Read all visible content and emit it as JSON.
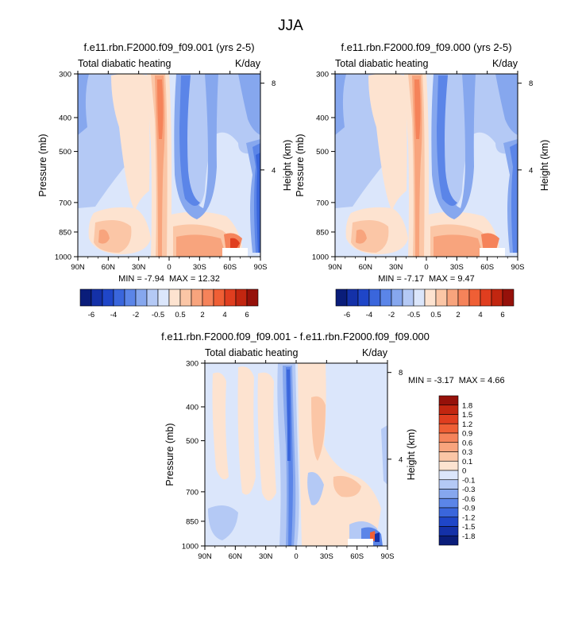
{
  "figure": {
    "title": "JJA"
  },
  "colors": {
    "bluescale": [
      "#0a1d7a",
      "#1431a8",
      "#1f46c8",
      "#3a66dc",
      "#5b85e8",
      "#86a7ee",
      "#b4c9f5",
      "#dbe6fb"
    ],
    "redscale": [
      "#fde3d0",
      "#fbc6a6",
      "#f8a47d",
      "#f5835a",
      "#ef5f35",
      "#e03e1f",
      "#c22610",
      "#96110a"
    ],
    "diffscale": [
      "#0a1d7a",
      "#1431a8",
      "#1f46c8",
      "#3a66dc",
      "#5b85e8",
      "#86a7ee",
      "#b4c9f5",
      "#dbe6fb",
      "#fde3d0",
      "#fbc6a6",
      "#f8a47d",
      "#f5835a",
      "#ef5f35",
      "#e03e1f",
      "#c22610",
      "#96110a"
    ]
  },
  "chart_data": [
    {
      "type": "heatmap",
      "title": "f.e11.rbn.F2000.f09_f09.001 (yrs 2-5)",
      "left_string": "Total diabatic heating",
      "right_string": "K/day",
      "ylabel": "Pressure (mb)",
      "y2label": "Height (km)",
      "x_ticks": [
        "90N",
        "60N",
        "30N",
        "0",
        "30S",
        "60S",
        "90S"
      ],
      "x_values": [
        90,
        60,
        30,
        0,
        -30,
        -60,
        -90
      ],
      "y_ticks": [
        "300",
        "400",
        "500",
        "700",
        "850",
        "1000"
      ],
      "y_values": [
        300,
        400,
        500,
        700,
        850,
        1000
      ],
      "y2_ticks": [
        "8",
        "4"
      ],
      "y2_values": [
        8,
        4
      ],
      "min_label": "MIN = ",
      "min": "-7.94",
      "max_label": "MAX = ",
      "max": "12.32",
      "colorbar_labels": [
        "-6",
        "-4",
        "-2",
        "-0.5",
        "0.5",
        "2",
        "4",
        "6"
      ],
      "colorbar_levels": [
        -6,
        -5,
        -4,
        -3,
        -2,
        -1,
        -0.5,
        0,
        0.5,
        1,
        2,
        3,
        4,
        5,
        6
      ]
    },
    {
      "type": "heatmap",
      "title": "f.e11.rbn.F2000.f09_f09.000 (yrs 2-5)",
      "left_string": "Total diabatic heating",
      "right_string": "K/day",
      "ylabel": "Pressure (mb)",
      "y2label": "Height (km)",
      "x_ticks": [
        "90N",
        "60N",
        "30N",
        "0",
        "30S",
        "60S",
        "90S"
      ],
      "x_values": [
        90,
        60,
        30,
        0,
        -30,
        -60,
        -90
      ],
      "y_ticks": [
        "300",
        "400",
        "500",
        "700",
        "850",
        "1000"
      ],
      "y_values": [
        300,
        400,
        500,
        700,
        850,
        1000
      ],
      "y2_ticks": [
        "8",
        "4"
      ],
      "y2_values": [
        8,
        4
      ],
      "min_label": "MIN = ",
      "min": "-7.17",
      "max_label": "MAX = ",
      "max": "9.47",
      "colorbar_labels": [
        "-6",
        "-4",
        "-2",
        "-0.5",
        "0.5",
        "2",
        "4",
        "6"
      ],
      "colorbar_levels": [
        -6,
        -5,
        -4,
        -3,
        -2,
        -1,
        -0.5,
        0,
        0.5,
        1,
        2,
        3,
        4,
        5,
        6
      ]
    },
    {
      "type": "heatmap",
      "title": "f.e11.rbn.F2000.f09_f09.001 - f.e11.rbn.F2000.f09_f09.000",
      "left_string": "Total diabatic heating",
      "right_string": "K/day",
      "ylabel": "Pressure (mb)",
      "y2label": "Height (km)",
      "x_ticks": [
        "90N",
        "60N",
        "30N",
        "0",
        "30S",
        "60S",
        "90S"
      ],
      "x_values": [
        90,
        60,
        30,
        0,
        -30,
        -60,
        -90
      ],
      "y_ticks": [
        "300",
        "400",
        "500",
        "700",
        "850",
        "1000"
      ],
      "y_values": [
        300,
        400,
        500,
        700,
        850,
        1000
      ],
      "y2_ticks": [
        "8",
        "4"
      ],
      "y2_values": [
        8,
        4
      ],
      "min_label": "MIN = ",
      "min": "-3.17",
      "max_label": "MAX = ",
      "max": "4.66",
      "colorbar_labels": [
        "1.8",
        "1.5",
        "1.2",
        "0.9",
        "0.6",
        "0.3",
        "0.1",
        "0",
        "-0.1",
        "-0.3",
        "-0.6",
        "-0.9",
        "-1.2",
        "-1.5",
        "-1.8"
      ],
      "colorbar_levels": [
        1.8,
        1.5,
        1.2,
        0.9,
        0.6,
        0.3,
        0.1,
        0,
        -0.1,
        -0.3,
        -0.6,
        -0.9,
        -1.2,
        -1.5,
        -1.8
      ]
    }
  ]
}
